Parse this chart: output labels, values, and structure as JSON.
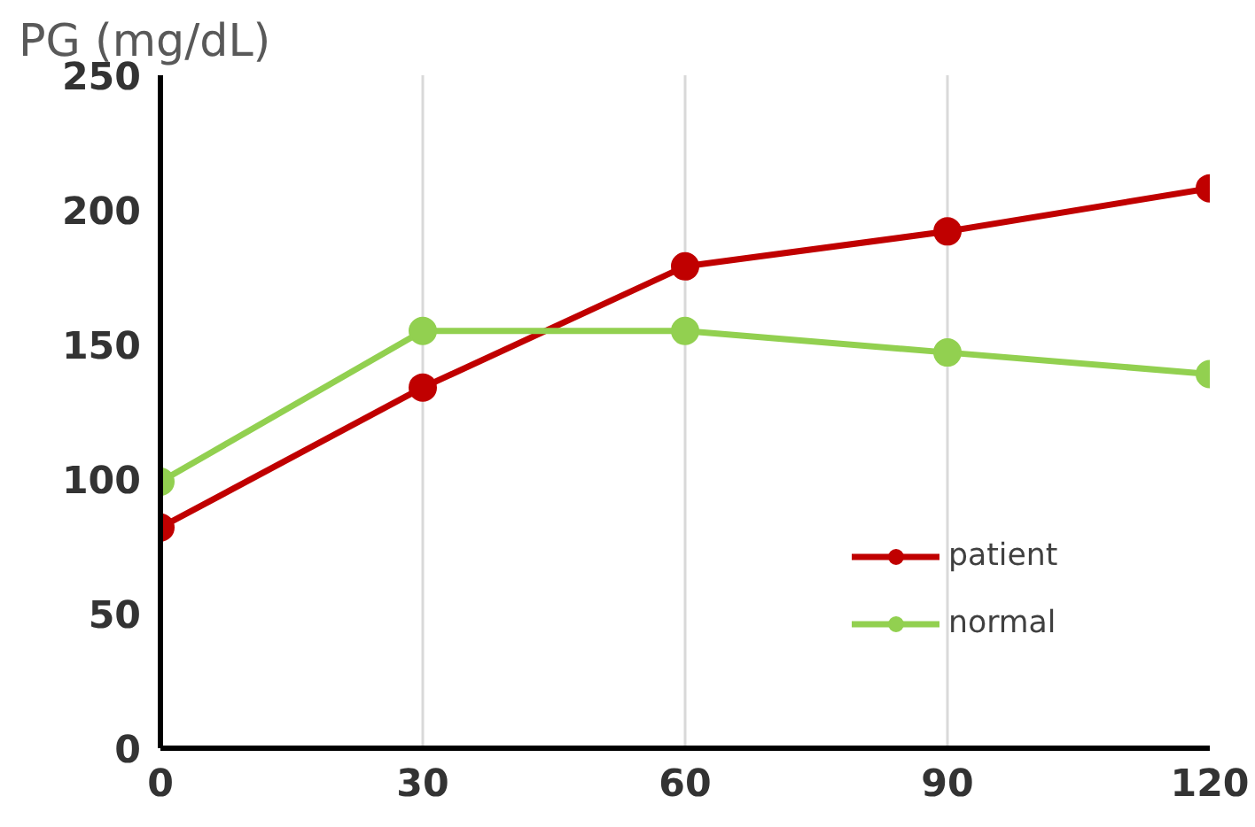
{
  "chart_data": {
    "type": "line",
    "ylabel": "PG (mg/dL)",
    "x": [
      0,
      30,
      60,
      90,
      120
    ],
    "series": [
      {
        "name": "patient",
        "color": "#c00000",
        "values": [
          82,
          134,
          179,
          192,
          208
        ]
      },
      {
        "name": "normal",
        "color": "#92d050",
        "values": [
          99,
          155,
          155,
          147,
          139
        ]
      }
    ],
    "xlim": [
      0,
      120
    ],
    "ylim": [
      0,
      250
    ],
    "xticks": [
      0,
      30,
      60,
      90,
      120
    ],
    "yticks": [
      0,
      50,
      100,
      150,
      200,
      250
    ],
    "grid": "x",
    "legend": "right",
    "marker": "circle",
    "line_style": "solid"
  }
}
